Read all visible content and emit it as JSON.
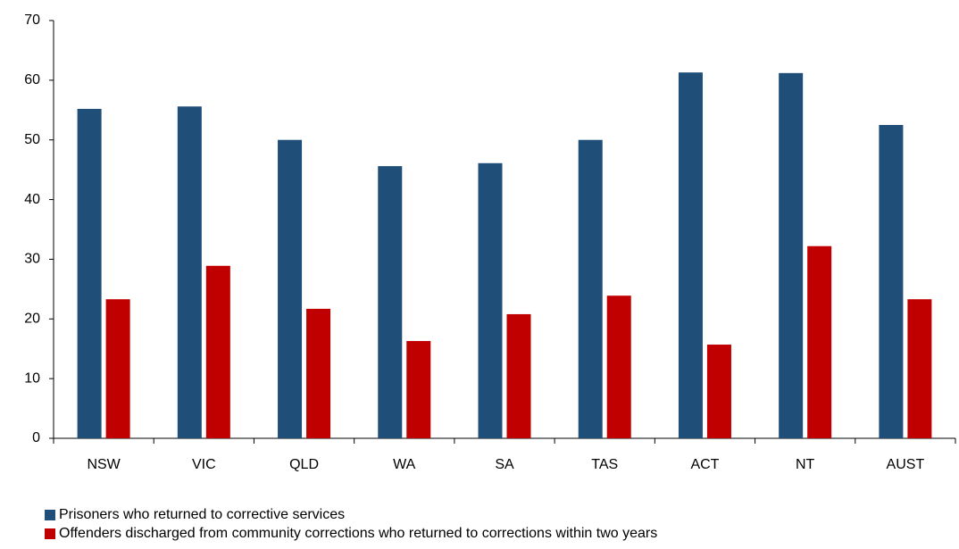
{
  "chart_data": {
    "type": "bar",
    "categories": [
      "NSW",
      "VIC",
      "QLD",
      "WA",
      "SA",
      "TAS",
      "ACT",
      "NT",
      "AUST"
    ],
    "series": [
      {
        "name": "Prisoners who returned to corrective services",
        "color": "#1f4e79",
        "values": [
          55.2,
          55.6,
          50.0,
          45.6,
          46.1,
          50.0,
          61.3,
          61.2,
          52.5
        ]
      },
      {
        "name": "Offenders discharged from community corrections who returned to corrections within two years",
        "color": "#c00000",
        "values": [
          23.3,
          28.9,
          21.7,
          16.3,
          20.8,
          23.9,
          15.7,
          32.2,
          23.3
        ]
      }
    ],
    "ylim": [
      0,
      70
    ],
    "yticks": [
      0,
      10,
      20,
      30,
      40,
      50,
      60,
      70
    ],
    "grid": false
  }
}
